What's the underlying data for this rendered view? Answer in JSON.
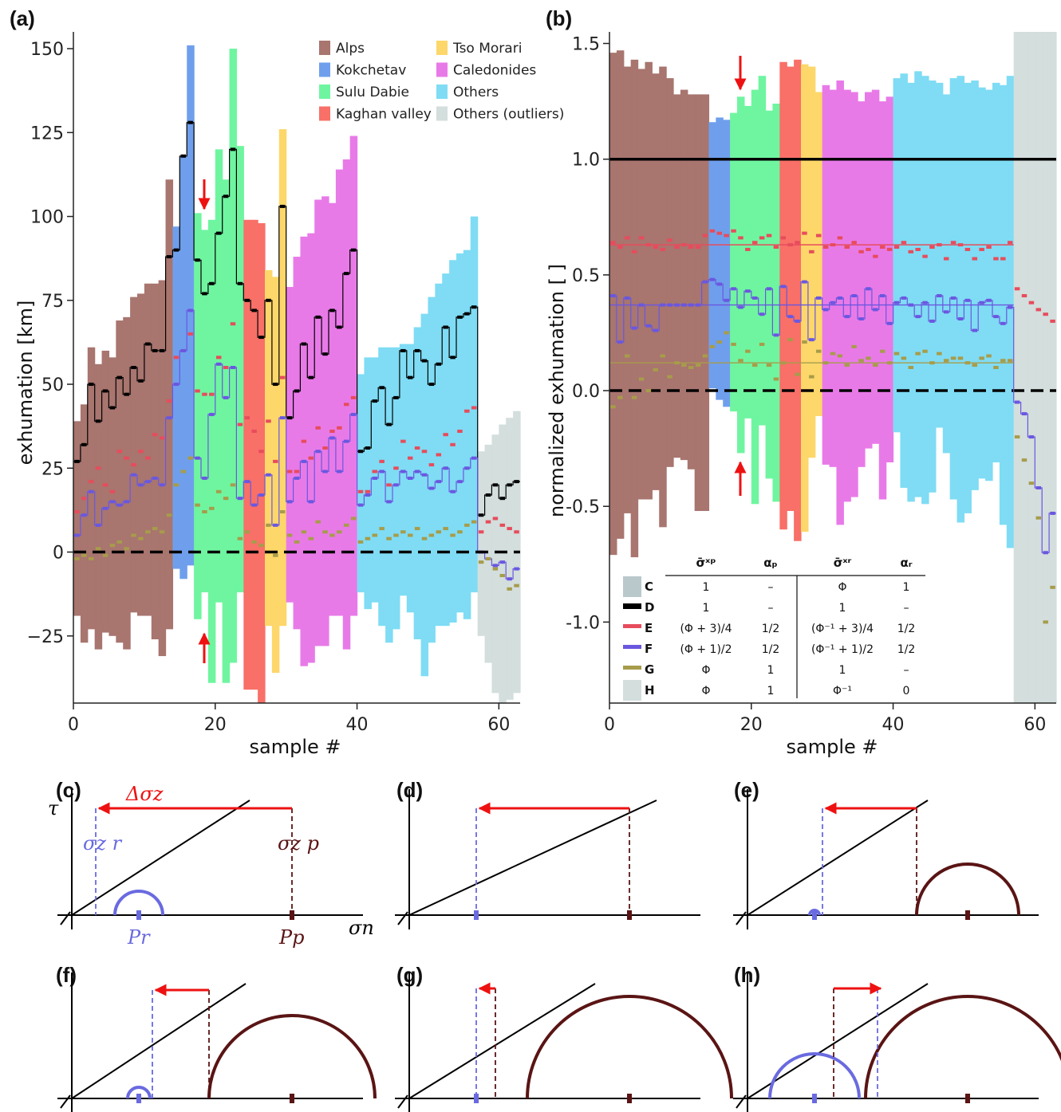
{
  "colors": {
    "Alps": "#a8756f",
    "Kokchetav": "#6f9fec",
    "Sulu Dabie": "#6ff5a0",
    "Kaghan valley": "#f87068",
    "Tso Morari": "#fdd76a",
    "Caledonides": "#e87ae8",
    "Others": "#7fdcf4",
    "Others (outliers)": "#d3dedd",
    "C": "#b9c8cb",
    "D": "#000000",
    "E": "#e74c5c",
    "F": "#6a57e0",
    "G": "#a79c4a",
    "H": "#d3dedd",
    "red_arrow": "#ee1111",
    "pressure": "#5a1414",
    "relaxed": "#6a6ae0"
  },
  "panel_a": {
    "label": "(a)",
    "xlabel": "sample #",
    "ylabel": "exhumation [km]",
    "yticks": [
      "150",
      "125",
      "100",
      "75",
      "50",
      "25",
      "0",
      "−25"
    ],
    "xticks": [
      "0",
      "20",
      "40",
      "60"
    ]
  },
  "panel_b": {
    "label": "(b)",
    "xlabel": "sample #",
    "ylabel": "normalized exhumation [ ]",
    "yticks": [
      "1.5",
      "1.0",
      "0.5",
      "0.0",
      "-0.5",
      "-1.0"
    ],
    "xticks": [
      "0",
      "20",
      "40",
      "60"
    ]
  },
  "legend": [
    "Alps",
    "Tso Morari",
    "Kokchetav",
    "Caledonides",
    "Sulu Dabie",
    "Others",
    "Kaghan valley",
    "Others (outliers)"
  ],
  "model_table": {
    "headers": [
      "σ̄ˣᵖ",
      "αₚ",
      "σ̄ˣʳ",
      "αᵣ"
    ],
    "rows": [
      {
        "id": "C",
        "c1": "1",
        "c2": "–",
        "c3": "Φ",
        "c4": "1"
      },
      {
        "id": "D",
        "c1": "1",
        "c2": "–",
        "c3": "1",
        "c4": "–"
      },
      {
        "id": "E",
        "c1": "(Φ + 3)/4",
        "c2": "1/2",
        "c3": "(Φ⁻¹ + 3)/4",
        "c4": "1/2"
      },
      {
        "id": "F",
        "c1": "(Φ + 1)/2",
        "c2": "1/2",
        "c3": "(Φ⁻¹ + 1)/2",
        "c4": "1/2"
      },
      {
        "id": "G",
        "c1": "Φ",
        "c2": "1",
        "c3": "1",
        "c4": "–"
      },
      {
        "id": "H",
        "c1": "Φ",
        "c2": "1",
        "c3": "Φ⁻¹",
        "c4": "0"
      }
    ]
  },
  "mohr": {
    "labels": [
      "(c)",
      "(d)",
      "(e)",
      "(f)",
      "(g)",
      "(h)"
    ],
    "tau": "τ",
    "sigma_n": "σn",
    "delta_sigma": "Δσz",
    "sigma_r": "σz r",
    "sigma_p": "σz p",
    "P_r": "Pr",
    "P_p": "Pp"
  },
  "chart_data": [
    {
      "type": "bar",
      "panel": "a",
      "description_of_units": "km",
      "xlabel": "sample #",
      "ylabel": "exhumation [km]",
      "xlim": [
        0,
        63
      ],
      "ylim": [
        -45,
        155
      ],
      "groups": [
        {
          "name": "Alps",
          "start": 0,
          "end": 14,
          "top": [
            39,
            44,
            61,
            56,
            60,
            58,
            69,
            70,
            76,
            77,
            80,
            80,
            81,
            111
          ],
          "bottom": [
            -19,
            -27,
            -23,
            -29,
            -24,
            -25,
            -27,
            -29,
            -18,
            -19,
            -19,
            -26,
            -31,
            -23
          ]
        },
        {
          "name": "Kokchetav",
          "start": 14,
          "end": 17,
          "top": [
            97,
            118,
            151
          ],
          "bottom": [
            -5,
            -8,
            -4
          ]
        },
        {
          "name": "Sulu Dabie",
          "start": 17,
          "end": 24,
          "top": [
            101,
            96,
            99,
            120,
            111,
            150,
            121
          ],
          "bottom": [
            -20,
            -12,
            -39,
            -15,
            -39,
            -33,
            -12
          ]
        },
        {
          "name": "Kaghan valley",
          "start": 24,
          "end": 27,
          "top": [
            99,
            99,
            98
          ],
          "bottom": [
            -41,
            -41,
            -45
          ]
        },
        {
          "name": "Tso Morari",
          "start": 27,
          "end": 30,
          "top": [
            84,
            82,
            126
          ],
          "bottom": [
            -22,
            -36,
            -22
          ]
        },
        {
          "name": "Caledonides",
          "start": 30,
          "end": 40,
          "top": [
            79,
            88,
            94,
            95,
            105,
            106,
            104,
            114,
            117,
            124
          ],
          "bottom": [
            -15,
            -23,
            -34,
            -33,
            -28,
            -28,
            -19,
            -19,
            -29,
            -19
          ]
        },
        {
          "name": "Others",
          "start": 40,
          "end": 57,
          "top": [
            53,
            58,
            58,
            61,
            61,
            61,
            62,
            62,
            67,
            71,
            76,
            80,
            83,
            87,
            89,
            90,
            100
          ],
          "bottom": [
            -12,
            -17,
            -15,
            -22,
            -27,
            -23,
            -13,
            -18,
            -26,
            -37,
            -27,
            -22,
            -22,
            -21,
            -18,
            -20,
            -12
          ]
        },
        {
          "name": "Others (outliers)",
          "start": 57,
          "end": 63,
          "top": [
            30,
            32,
            35,
            38,
            40,
            42
          ],
          "bottom": [
            -25,
            -33,
            -42,
            -45,
            -44,
            -42
          ]
        }
      ],
      "series": [
        {
          "name": "D",
          "values": [
            27,
            32,
            50,
            39,
            48,
            43,
            52,
            47,
            55,
            51,
            62,
            60,
            60,
            88,
            90,
            118,
            128,
            87,
            77,
            80,
            95,
            106,
            120,
            80,
            75,
            72,
            64,
            75,
            50,
            103,
            40,
            48,
            62,
            52,
            70,
            59,
            72,
            67,
            83,
            90,
            30,
            31,
            45,
            49,
            38,
            46,
            60,
            52,
            60,
            57,
            50,
            56,
            67,
            58,
            70,
            71,
            73,
            11,
            17,
            20,
            16,
            20,
            21
          ]
        },
        {
          "name": "E",
          "values": [
            12,
            16,
            21,
            25,
            20,
            18,
            30,
            28,
            26,
            30,
            28,
            35,
            34,
            45,
            58,
            60,
            65,
            48,
            47,
            47,
            58,
            55,
            68,
            38,
            40,
            36,
            30,
            39,
            27,
            52,
            24,
            24,
            33,
            28,
            37,
            31,
            36,
            37,
            44,
            46,
            18,
            18,
            24,
            27,
            20,
            25,
            33,
            28,
            31,
            30,
            26,
            29,
            35,
            32,
            36,
            42,
            43,
            6,
            9,
            10,
            8,
            7,
            6
          ]
        },
        {
          "name": "F",
          "values": [
            5,
            11,
            18,
            8,
            13,
            15,
            14,
            15,
            23,
            20,
            21,
            22,
            20,
            40,
            50,
            60,
            72,
            28,
            22,
            41,
            56,
            46,
            55,
            16,
            21,
            14,
            17,
            23,
            8,
            40,
            15,
            22,
            27,
            15,
            30,
            24,
            34,
            24,
            33,
            41,
            14,
            17,
            22,
            24,
            15,
            20,
            24,
            22,
            24,
            23,
            19,
            21,
            25,
            18,
            21,
            25,
            28,
            0,
            -2,
            -4,
            -3,
            -8,
            -5
          ]
        },
        {
          "name": "G",
          "values": [
            -2,
            -1,
            -2,
            1,
            -1,
            2,
            3,
            1,
            5,
            4,
            6,
            7,
            6,
            11,
            20,
            24,
            28,
            14,
            12,
            13,
            18,
            16,
            20,
            4,
            6,
            3,
            2,
            8,
            -1,
            12,
            5,
            3,
            6,
            4,
            9,
            6,
            5,
            6,
            8,
            10,
            3,
            4,
            5,
            7,
            4,
            5,
            6,
            5,
            7,
            4,
            5,
            6,
            7,
            5,
            6,
            8,
            9,
            -3,
            -2,
            -5,
            -7,
            -11,
            -10
          ]
        }
      ]
    },
    {
      "type": "bar",
      "panel": "b",
      "xlabel": "sample #",
      "ylabel": "normalized exhumation [ ]",
      "xlim": [
        0,
        63
      ],
      "ylim": [
        -1.35,
        1.55
      ],
      "groups": [
        {
          "name": "Alps",
          "start": 0,
          "end": 14,
          "top": [
            1.46,
            1.47,
            1.4,
            1.43,
            1.39,
            1.42,
            1.37,
            1.4,
            1.35,
            1.28,
            1.3,
            1.28,
            1.28,
            1.28
          ],
          "bottom": [
            -0.71,
            -0.64,
            -0.53,
            -0.72,
            -0.47,
            -0.47,
            -0.43,
            -0.59,
            -0.33,
            -0.29,
            -0.3,
            -0.34,
            -0.52,
            -0.52
          ]
        },
        {
          "name": "Kokchetav",
          "start": 14,
          "end": 17,
          "top": [
            1.16,
            1.18,
            1.17
          ],
          "bottom": [
            0.01,
            -0.04,
            -0.07
          ]
        },
        {
          "name": "Sulu Dabie",
          "start": 17,
          "end": 24,
          "top": [
            1.2,
            1.27,
            1.23,
            1.3,
            1.36,
            1.21,
            1.24
          ],
          "bottom": [
            -0.09,
            -0.27,
            -0.12,
            -0.49,
            -0.15,
            -0.38,
            -0.48
          ]
        },
        {
          "name": "Kaghan valley",
          "start": 24,
          "end": 27,
          "top": [
            1.42,
            1.4,
            1.43
          ],
          "bottom": [
            -0.6,
            -0.52,
            -0.65
          ]
        },
        {
          "name": "Tso Morari",
          "start": 27,
          "end": 30,
          "top": [
            1.41,
            1.4,
            1.29
          ],
          "bottom": [
            -0.61,
            -0.29,
            -0.11
          ]
        },
        {
          "name": "Caledonides",
          "start": 30,
          "end": 40,
          "top": [
            1.32,
            1.3,
            1.34,
            1.3,
            1.29,
            1.25,
            1.29,
            1.3,
            1.25,
            1.27
          ],
          "bottom": [
            -0.32,
            -0.33,
            -0.58,
            -0.48,
            -0.46,
            -0.33,
            -0.25,
            -0.23,
            -0.47,
            -0.31
          ]
        },
        {
          "name": "Others",
          "start": 40,
          "end": 57,
          "top": [
            1.35,
            1.37,
            1.33,
            1.38,
            1.36,
            1.34,
            1.33,
            1.28,
            1.35,
            1.36,
            1.33,
            1.34,
            1.31,
            1.3,
            1.33,
            1.32,
            1.36
          ],
          "bottom": [
            -0.18,
            -0.42,
            -0.48,
            -0.46,
            -0.49,
            -0.44,
            -0.16,
            -0.27,
            -0.47,
            -0.57,
            -0.53,
            -0.43,
            -0.38,
            -0.39,
            -0.31,
            -0.58,
            -0.68
          ]
        },
        {
          "name": "Others (outliers)",
          "start": 57,
          "end": 63,
          "top": [
            1.55,
            1.55,
            1.55,
            1.55,
            1.55,
            1.55
          ],
          "bottom": [
            -1.35,
            -1.35,
            -1.35,
            -1.35,
            -1.35,
            -1.35
          ]
        }
      ],
      "series": [
        {
          "name": "D",
          "constant": 1.0
        },
        {
          "name": "C",
          "constant": 0.0
        },
        {
          "name": "E",
          "mean": 0.63,
          "values": [
            0.64,
            0.62,
            0.66,
            0.6,
            0.66,
            0.63,
            0.62,
            0.61,
            0.65,
            0.62,
            0.63,
            0.62,
            0.62,
            0.67,
            0.69,
            0.68,
            0.67,
            0.69,
            0.66,
            0.61,
            0.64,
            0.66,
            0.67,
            0.62,
            0.66,
            0.63,
            0.64,
            0.68,
            0.6,
            0.67,
            0.62,
            0.63,
            0.66,
            0.62,
            0.64,
            0.6,
            0.61,
            0.58,
            0.62,
            0.61,
            0.62,
            0.64,
            0.6,
            0.61,
            0.58,
            0.62,
            0.63,
            0.57,
            0.64,
            0.63,
            0.61,
            0.57,
            0.61,
            0.62,
            0.57,
            0.57,
            0.64,
            0.44,
            0.41,
            0.38,
            0.35,
            0.33,
            0.3
          ]
        },
        {
          "name": "F",
          "mean": 0.37,
          "values": [
            0.41,
            0.21,
            0.4,
            0.27,
            0.37,
            0.28,
            0.26,
            0.37,
            0.37,
            0.37,
            0.37,
            0.37,
            0.37,
            0.47,
            0.48,
            0.46,
            0.39,
            0.44,
            0.36,
            0.43,
            0.4,
            0.33,
            0.44,
            0.24,
            0.45,
            0.32,
            0.3,
            0.47,
            0.22,
            0.4,
            0.35,
            0.38,
            0.4,
            0.32,
            0.41,
            0.31,
            0.44,
            0.35,
            0.41,
            0.29,
            0.38,
            0.4,
            0.37,
            0.32,
            0.38,
            0.3,
            0.41,
            0.34,
            0.4,
            0.31,
            0.39,
            0.26,
            0.38,
            0.39,
            0.32,
            0.29,
            0.36,
            -0.05,
            -0.1,
            -0.2,
            -0.42,
            -0.7,
            -0.53
          ]
        },
        {
          "name": "G",
          "mean": 0.12,
          "values": [
            -0.07,
            -0.03,
            0.15,
            -0.03,
            0.05,
            0.0,
            0.09,
            0.15,
            0.06,
            0.12,
            0.11,
            0.1,
            0.11,
            0.15,
            0.19,
            0.21,
            0.25,
            0.2,
            0.13,
            0.17,
            0.11,
            0.2,
            0.11,
            0.05,
            0.12,
            0.22,
            0.07,
            0.21,
            0.06,
            0.17,
            0.12,
            0.16,
            0.15,
            0.11,
            0.19,
            0.13,
            0.14,
            0.11,
            0.17,
            0.12,
            0.16,
            0.14,
            0.1,
            0.16,
            0.17,
            0.12,
            0.16,
            0.13,
            0.14,
            0.14,
            0.12,
            0.11,
            0.14,
            0.15,
            0.1,
            0.13,
            0.13,
            -0.2,
            -0.3,
            -0.4,
            -0.55,
            -1.0,
            -0.85
          ]
        }
      ]
    }
  ]
}
